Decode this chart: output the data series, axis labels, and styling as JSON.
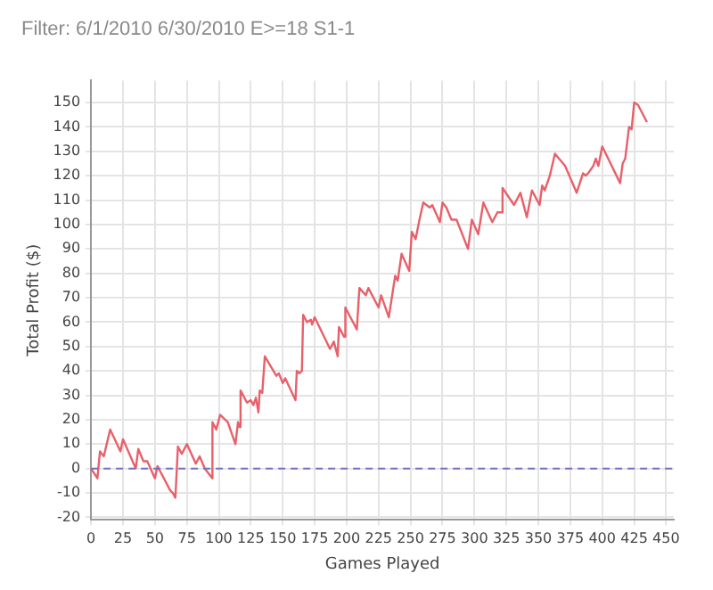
{
  "chart_data": {
    "type": "line",
    "title": "Filter: 6/1/2010 6/30/2010 E>=18 S1-1",
    "xlabel": "Games Played",
    "ylabel": "Total Profit ($)",
    "x": [
      0,
      5,
      7,
      10,
      15,
      23,
      25,
      35,
      37,
      41,
      44,
      50,
      52,
      62,
      64,
      66,
      68,
      71,
      75,
      82,
      85,
      89,
      95,
      95,
      98,
      101,
      107,
      113,
      115,
      116,
      117,
      122,
      125,
      127,
      129,
      131,
      132,
      134,
      136,
      145,
      147,
      150,
      152,
      160,
      161,
      163,
      165,
      166,
      169,
      172,
      173,
      175,
      187,
      190,
      193,
      194,
      198,
      199,
      205,
      208,
      210,
      215,
      217,
      225,
      227,
      233,
      238,
      240,
      243,
      249,
      251,
      254,
      257,
      260,
      265,
      267,
      273,
      275,
      278,
      282,
      286,
      295,
      298,
      303,
      307,
      314,
      318,
      321,
      322,
      331,
      336,
      341,
      345,
      351,
      353,
      355,
      359,
      363,
      371,
      380,
      385,
      387,
      389,
      393,
      395,
      397,
      400,
      414,
      416,
      418,
      421,
      423,
      425,
      428,
      435
    ],
    "series": [
      {
        "color": "#e8606a",
        "values": [
          0,
          -4,
          7,
          5,
          16,
          7,
          12,
          0,
          8,
          3,
          3,
          -4,
          1,
          -9,
          -10,
          -12,
          9,
          6,
          10,
          2,
          5,
          0,
          -4,
          19,
          16,
          22,
          19,
          10,
          19,
          17,
          32,
          27,
          28,
          26,
          29,
          23,
          32,
          31,
          46,
          38,
          39,
          35,
          37,
          28,
          40,
          39,
          40,
          63,
          60,
          61,
          59,
          62,
          49,
          52,
          46,
          58,
          54,
          66,
          60,
          57,
          74,
          71,
          74,
          66,
          71,
          62,
          79,
          77,
          88,
          81,
          97,
          94,
          102,
          109,
          107,
          108,
          101,
          109,
          107,
          102,
          102,
          90,
          102,
          96,
          109,
          101,
          105,
          105,
          115,
          108,
          113,
          103,
          114,
          108,
          116,
          114,
          120,
          129,
          124,
          113,
          121,
          120,
          121,
          124,
          127,
          124,
          132,
          117,
          125,
          127,
          140,
          139,
          150,
          149,
          142
        ]
      }
    ],
    "xlim": [
      0,
      456
    ],
    "ylim": [
      -21,
      159
    ],
    "xticks": [
      0,
      25,
      50,
      75,
      100,
      125,
      150,
      175,
      200,
      225,
      250,
      275,
      300,
      325,
      350,
      375,
      400,
      425,
      450
    ],
    "yticks": [
      -20,
      -10,
      0,
      10,
      20,
      30,
      40,
      50,
      60,
      70,
      80,
      90,
      100,
      110,
      120,
      130,
      140,
      150
    ],
    "grid": true,
    "legend": false,
    "marker": "none",
    "line_style": "solid",
    "ref_lines": [
      {
        "axis": "y",
        "value": 0,
        "color": "#7070c0",
        "line_style": "dashed"
      }
    ]
  }
}
